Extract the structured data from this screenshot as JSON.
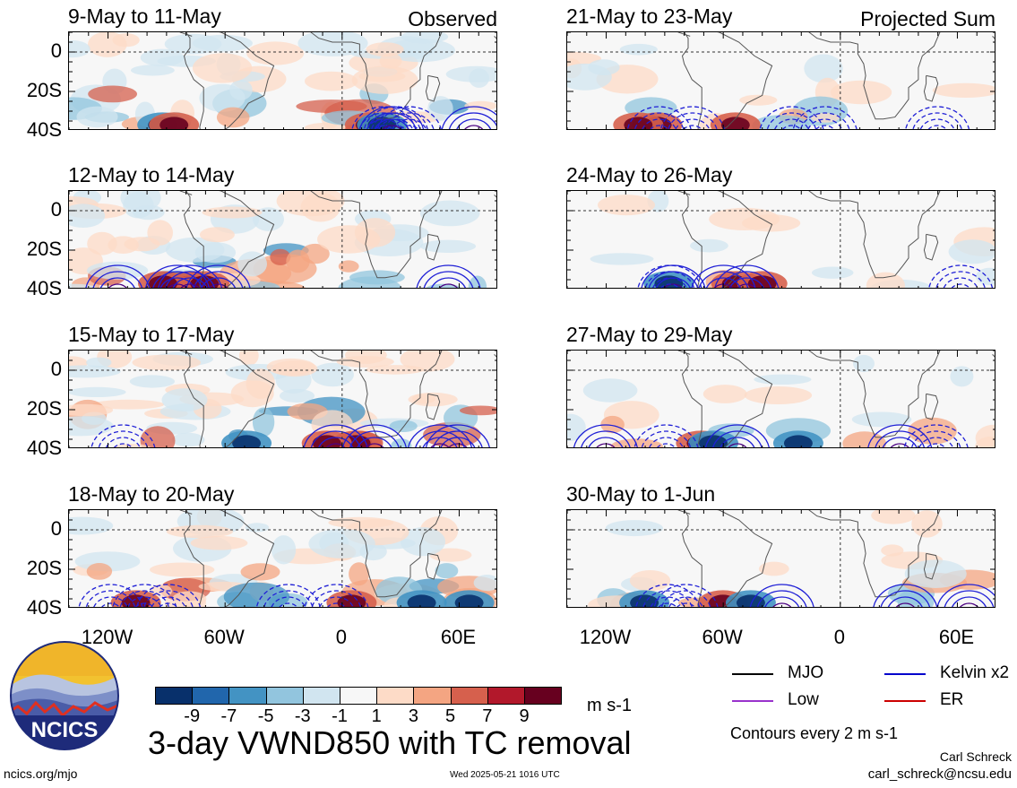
{
  "panels": [
    {
      "title": "9-May to 11-May",
      "tag": "Observed",
      "side": "left",
      "row": 0
    },
    {
      "title": "21-May to 23-May",
      "tag": "Projected Sum",
      "side": "right",
      "row": 0
    },
    {
      "title": "12-May to 14-May",
      "tag": "",
      "side": "left",
      "row": 1
    },
    {
      "title": "24-May to 26-May",
      "tag": "",
      "side": "right",
      "row": 1
    },
    {
      "title": "15-May to 17-May",
      "tag": "",
      "side": "left",
      "row": 2
    },
    {
      "title": "27-May to 29-May",
      "tag": "",
      "side": "right",
      "row": 2
    },
    {
      "title": "18-May to 20-May",
      "tag": "",
      "side": "left",
      "row": 3
    },
    {
      "title": "30-May to 1-Jun",
      "tag": "",
      "side": "right",
      "row": 3
    }
  ],
  "axes": {
    "lat_labels": [
      "0",
      "20S",
      "40S"
    ],
    "lon_labels": [
      "120W",
      "60W",
      "0",
      "60E"
    ]
  },
  "colorbar": {
    "colors": [
      "#08306b",
      "#2166ac",
      "#4393c3",
      "#92c5de",
      "#d1e5f0",
      "#f7f7f7",
      "#fddbc7",
      "#f4a582",
      "#d6604d",
      "#b2182b",
      "#67001f"
    ],
    "labels": [
      "-9",
      "-7",
      "-5",
      "-3",
      "-1",
      "1",
      "3",
      "5",
      "7",
      "9"
    ],
    "units": "m s-1"
  },
  "legend": [
    {
      "label": "MJO",
      "color": "#000000"
    },
    {
      "label": "Kelvin x2",
      "color": "#0000cc"
    },
    {
      "label": "Low",
      "color": "#9933cc"
    },
    {
      "label": "ER",
      "color": "#cc0000"
    }
  ],
  "footer": {
    "title": "3-day VWND850 with TC removal",
    "contour_note": "Contours every 2 m s-1",
    "author": "Carl Schreck",
    "email": "carl_schreck@ncsu.edu",
    "site": "ncics.org/mjo",
    "timestamp": "Wed 2025-05-21 1016 UTC",
    "logo_text": "NCICS"
  },
  "chart_data": {
    "type": "heatmap",
    "variable": "VWND850",
    "units": "m s-1",
    "contour_interval": 2,
    "lat_range": [
      "40S",
      "10N"
    ],
    "lon_range": [
      "140W",
      "80E"
    ],
    "panels": [
      "9-May to 11-May",
      "12-May to 14-May",
      "15-May to 17-May",
      "18-May to 20-May",
      "21-May to 23-May",
      "24-May to 26-May",
      "27-May to 29-May",
      "30-May to 1-Jun"
    ],
    "legend_placement": "bottom-right"
  }
}
